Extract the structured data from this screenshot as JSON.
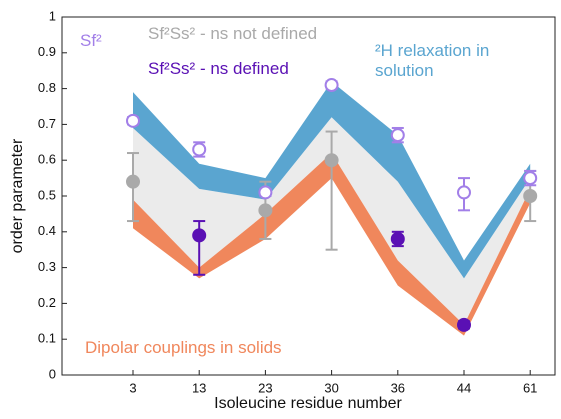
{
  "chart_data": {
    "type": "scatter",
    "x_label": "Isoleucine residue number",
    "y_label": "order parameter",
    "categories": [
      "3",
      "13",
      "23",
      "30",
      "36",
      "44",
      "61"
    ],
    "ylim": [
      0,
      1
    ],
    "yticks": [
      0,
      0.1,
      0.2,
      0.3,
      0.4,
      0.5,
      0.6,
      0.7,
      0.8,
      0.9,
      1
    ],
    "series": [
      {
        "name": "²H relaxation in solution",
        "kind": "band",
        "color": "#5aa5d0",
        "values": [
          0.79,
          0.59,
          0.55,
          0.82,
          0.67,
          0.32,
          0.59
        ],
        "lower": [
          0.69,
          0.52,
          0.49,
          0.72,
          0.54,
          0.27,
          0.55
        ]
      },
      {
        "name": "Dipolar couplings in solids",
        "kind": "band",
        "color": "#f0875c",
        "values": [
          0.49,
          0.3,
          0.45,
          0.62,
          0.32,
          0.14,
          0.52
        ],
        "lower": [
          0.41,
          0.27,
          0.38,
          0.55,
          0.25,
          0.11,
          0.48
        ]
      },
      {
        "name": "Sf²Ss² - ns not defined",
        "kind": "points",
        "color": "#a9a9a9",
        "filled": true,
        "values": [
          0.54,
          null,
          0.46,
          0.6,
          null,
          null,
          0.5
        ],
        "err_low": [
          0.43,
          null,
          0.38,
          0.35,
          null,
          null,
          0.43
        ],
        "err_high": [
          0.62,
          null,
          0.54,
          0.68,
          null,
          null,
          0.57
        ]
      },
      {
        "name": "Sf²Ss² - ns defined",
        "kind": "points",
        "color": "#5a10b4",
        "filled": true,
        "values": [
          null,
          0.39,
          null,
          null,
          0.38,
          0.14,
          null
        ],
        "err_low": [
          null,
          0.28,
          null,
          null,
          0.36,
          0.13,
          null
        ],
        "err_high": [
          null,
          0.43,
          null,
          null,
          0.4,
          0.15,
          null
        ]
      },
      {
        "name": "Sf²",
        "kind": "points",
        "color": "#a27fe8",
        "filled": false,
        "values": [
          0.71,
          0.63,
          0.51,
          0.81,
          0.67,
          0.51,
          0.55
        ],
        "err_low": [
          0.7,
          0.61,
          0.5,
          0.8,
          0.65,
          0.46,
          0.53
        ],
        "err_high": [
          0.72,
          0.65,
          0.52,
          0.82,
          0.69,
          0.55,
          0.57
        ]
      }
    ]
  }
}
